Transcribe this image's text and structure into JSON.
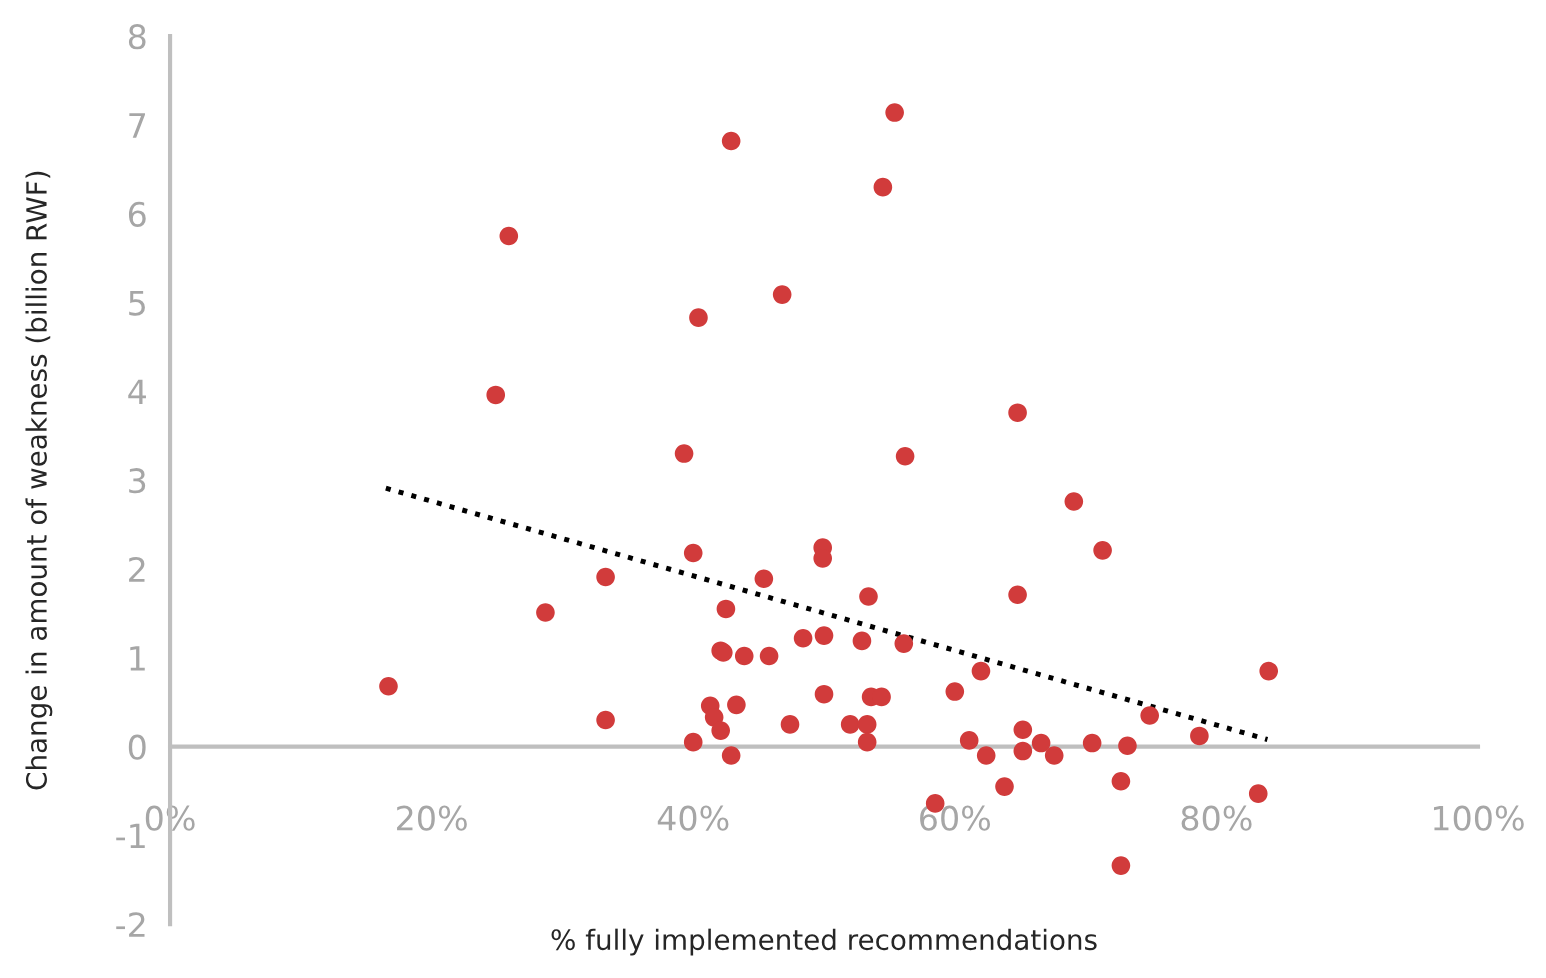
{
  "chart_data": {
    "type": "scatter",
    "xlabel": "% fully implemented recommendations",
    "ylabel": "Change in amount of weakness (billion RWF)",
    "series": [
      {
        "marker": "circle",
        "color": "#d13b3b",
        "x": [
          25.9,
          24.9,
          42.9,
          55.4,
          54.5,
          46.8,
          40.4,
          39.3,
          56.2,
          64.8,
          69.1,
          16.7,
          28.7,
          33.3,
          33.3,
          40.0,
          40.0,
          49.9,
          49.9,
          45.4,
          42.5,
          53.4,
          42.1,
          42.3,
          43.9,
          45.8,
          48.4,
          50.0,
          52.9,
          56.1,
          50.0,
          53.6,
          54.4,
          41.3,
          43.3,
          41.6,
          42.1,
          47.4,
          52.0,
          53.3,
          53.3,
          42.9,
          58.5,
          71.3,
          64.8,
          62.0,
          60.0,
          84.0,
          74.9,
          78.7,
          61.1,
          65.2,
          65.2,
          66.6,
          62.4,
          67.6,
          70.5,
          73.2,
          63.8,
          72.7,
          83.2,
          72.7
        ],
        "values": [
          5.75,
          3.96,
          6.82,
          7.14,
          6.3,
          5.09,
          4.83,
          3.3,
          3.27,
          3.76,
          2.76,
          0.68,
          1.51,
          1.91,
          0.3,
          2.18,
          0.05,
          2.24,
          2.12,
          1.89,
          1.55,
          1.69,
          1.08,
          1.06,
          1.02,
          1.02,
          1.22,
          1.25,
          1.19,
          1.16,
          0.59,
          0.56,
          0.56,
          0.46,
          0.47,
          0.33,
          0.18,
          0.25,
          0.25,
          0.25,
          0.05,
          -0.1,
          -0.64,
          2.21,
          1.71,
          0.85,
          0.62,
          0.85,
          0.35,
          0.12,
          0.07,
          0.19,
          -0.05,
          0.04,
          -0.1,
          -0.1,
          0.04,
          0.01,
          -0.45,
          -0.39,
          -0.53,
          -1.34
        ]
      },
      {
        "type": "line",
        "marker": "none",
        "color": "#000000",
        "line_style": "dotted",
        "x": [
          16.5,
          83.9
        ],
        "values": [
          2.91,
          0.08
        ]
      }
    ],
    "xlim": [
      0,
      100
    ],
    "ylim": [
      -2,
      8
    ],
    "xticks": [
      {
        "value": 0,
        "label": "0%"
      },
      {
        "value": 20,
        "label": "20%"
      },
      {
        "value": 40,
        "label": "40%"
      },
      {
        "value": 60,
        "label": "60%"
      },
      {
        "value": 80,
        "label": "80%"
      },
      {
        "value": 100,
        "label": "100%"
      }
    ],
    "yticks": [
      -2,
      -1,
      0,
      1,
      2,
      3,
      4,
      5,
      6,
      7,
      8
    ],
    "grid": false,
    "legend": false
  }
}
